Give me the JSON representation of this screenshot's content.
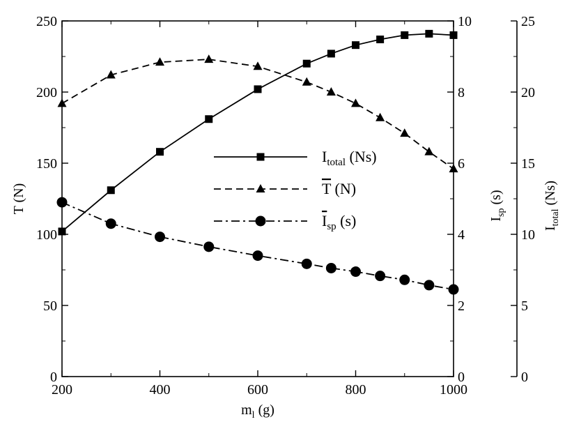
{
  "chart_data": {
    "type": "line",
    "xlabel": {
      "main": "m",
      "sub": "l",
      "unit": " (g)"
    },
    "xlim": [
      200,
      1000
    ],
    "xticks": [
      200,
      400,
      600,
      800,
      1000
    ],
    "left_axis": {
      "label": "T (N)",
      "ylim": [
        0,
        250
      ],
      "ticks": [
        0,
        50,
        100,
        150,
        200,
        250
      ]
    },
    "right_axis_1": {
      "label": {
        "main": "I",
        "sub": "sp",
        "unit": " (s)"
      },
      "ylim": [
        0,
        10
      ],
      "ticks": [
        0,
        2,
        4,
        6,
        8,
        10
      ]
    },
    "right_axis_2": {
      "label": {
        "main": "I",
        "sub": "total",
        "unit": " (Ns)"
      },
      "ylim": [
        0,
        25
      ],
      "ticks": [
        0,
        5,
        10,
        15,
        20,
        25
      ]
    },
    "legend_position": "center",
    "grid": false,
    "series": [
      {
        "name": {
          "main": "I",
          "sub": "total",
          "unit": " (Ns)",
          "overline": false
        },
        "axis": "right_axis_2",
        "style": "solid",
        "marker": "square",
        "x": [
          200,
          300,
          400,
          500,
          600,
          700,
          750,
          800,
          850,
          900,
          950,
          1000
        ],
        "y": [
          10.2,
          13.1,
          15.8,
          18.1,
          20.2,
          22.0,
          22.7,
          23.3,
          23.7,
          24.0,
          24.1,
          24.0
        ]
      },
      {
        "name": {
          "main": "T",
          "sub": "",
          "unit": " (N)",
          "overline": true
        },
        "axis": "left_axis",
        "style": "dashed",
        "marker": "triangle",
        "x": [
          200,
          300,
          400,
          500,
          600,
          700,
          750,
          800,
          850,
          900,
          950,
          1000
        ],
        "y": [
          192,
          212,
          221,
          223,
          218,
          207,
          200,
          192,
          182,
          171,
          158,
          146
        ]
      },
      {
        "name": {
          "main": "I",
          "sub": "sp",
          "unit": " (s)",
          "overline": true
        },
        "axis": "right_axis_1",
        "style": "dashdot",
        "marker": "circle",
        "x": [
          200,
          300,
          400,
          500,
          600,
          700,
          750,
          800,
          850,
          900,
          950,
          1000
        ],
        "y": [
          4.9,
          4.3,
          3.93,
          3.65,
          3.4,
          3.17,
          3.05,
          2.95,
          2.83,
          2.72,
          2.57,
          2.45
        ]
      }
    ]
  }
}
